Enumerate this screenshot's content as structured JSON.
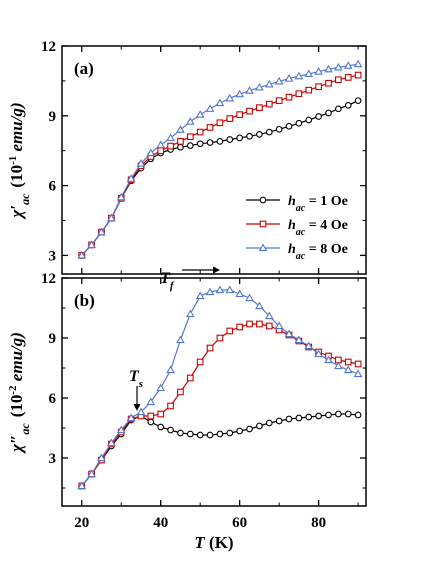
{
  "chart_data": [
    {
      "type": "line",
      "panel_label": "(a)",
      "ylabel_main": "χ′",
      "ylabel_sub": "ac",
      "ylabel_rest": "(10",
      "ylabel_exp": "-1",
      "ylabel_unit": " emu/g)",
      "xlim": [
        15,
        92
      ],
      "ylim": [
        2.2,
        12
      ],
      "yticks": [
        3,
        6,
        9,
        12
      ],
      "x": [
        20,
        22.5,
        25,
        27.5,
        30,
        32.5,
        35,
        37.5,
        40,
        42.5,
        45,
        47.5,
        50,
        52.5,
        55,
        57.5,
        60,
        62.5,
        65,
        67.5,
        70,
        72.5,
        75,
        77.5,
        80,
        82.5,
        85,
        87.5,
        90
      ],
      "series": [
        {
          "name_main": "h",
          "name_sub": "ac",
          "name_rest": " = 1 Oe",
          "marker": "circle",
          "color": "#000000",
          "values": [
            3.0,
            3.45,
            4.0,
            4.6,
            5.45,
            6.2,
            6.75,
            7.15,
            7.4,
            7.55,
            7.65,
            7.72,
            7.8,
            7.85,
            7.9,
            7.98,
            8.05,
            8.12,
            8.2,
            8.3,
            8.42,
            8.55,
            8.68,
            8.82,
            8.97,
            9.12,
            9.3,
            9.45,
            9.65
          ]
        },
        {
          "name_main": "h",
          "name_sub": "ac",
          "name_rest": " = 4 Oe",
          "marker": "square",
          "color": "#cc0000",
          "values": [
            3.0,
            3.45,
            4.0,
            4.6,
            5.45,
            6.25,
            6.85,
            7.25,
            7.5,
            7.7,
            7.9,
            8.1,
            8.3,
            8.5,
            8.7,
            8.88,
            9.05,
            9.2,
            9.35,
            9.5,
            9.65,
            9.8,
            9.95,
            10.1,
            10.25,
            10.4,
            10.55,
            10.65,
            10.75
          ]
        },
        {
          "name_main": "h",
          "name_sub": "ac",
          "name_rest": " = 8 Oe",
          "marker": "triangle",
          "color": "#5577cc",
          "values": [
            3.0,
            3.45,
            4.0,
            4.6,
            5.5,
            6.3,
            6.95,
            7.4,
            7.75,
            8.05,
            8.4,
            8.75,
            9.05,
            9.3,
            9.55,
            9.75,
            9.93,
            10.08,
            10.22,
            10.35,
            10.48,
            10.6,
            10.7,
            10.8,
            10.9,
            11.0,
            11.08,
            11.15,
            11.22
          ]
        }
      ]
    },
    {
      "type": "line",
      "panel_label": "(b)",
      "ylabel_main": "χ″",
      "ylabel_sub": "ac",
      "ylabel_rest": "(10",
      "ylabel_exp": "-2",
      "ylabel_unit": " emu/g)",
      "xlabel_main": "T",
      "xlabel_rest": " (K)",
      "xlim": [
        15,
        92
      ],
      "ylim": [
        0.6,
        12
      ],
      "yticks": [
        3,
        6,
        9,
        12
      ],
      "xticks": [
        20,
        40,
        60,
        80
      ],
      "x": [
        20,
        22.5,
        25,
        27.5,
        30,
        32.5,
        35,
        37.5,
        40,
        42.5,
        45,
        47.5,
        50,
        52.5,
        55,
        57.5,
        60,
        62.5,
        65,
        67.5,
        70,
        72.5,
        75,
        77.5,
        80,
        82.5,
        85,
        87.5,
        90
      ],
      "series": [
        {
          "marker": "circle",
          "color": "#000000",
          "values": [
            1.6,
            2.2,
            2.9,
            3.6,
            4.2,
            4.9,
            5.1,
            4.8,
            4.55,
            4.4,
            4.25,
            4.2,
            4.15,
            4.15,
            4.2,
            4.25,
            4.35,
            4.45,
            4.6,
            4.75,
            4.85,
            4.95,
            5.0,
            5.05,
            5.1,
            5.15,
            5.2,
            5.2,
            5.15
          ]
        },
        {
          "marker": "square",
          "color": "#cc0000",
          "values": [
            1.6,
            2.2,
            2.9,
            3.7,
            4.3,
            4.95,
            5.1,
            5.1,
            5.2,
            5.6,
            6.3,
            7.0,
            7.8,
            8.5,
            9.0,
            9.35,
            9.55,
            9.7,
            9.7,
            9.6,
            9.4,
            9.15,
            8.85,
            8.55,
            8.3,
            8.1,
            7.9,
            7.8,
            7.7
          ]
        },
        {
          "marker": "triangle",
          "color": "#5577cc",
          "values": [
            1.6,
            2.2,
            3.0,
            3.75,
            4.4,
            5.0,
            5.3,
            5.8,
            6.5,
            7.4,
            8.9,
            10.2,
            11.1,
            11.3,
            11.4,
            11.4,
            11.2,
            11.0,
            10.6,
            10.1,
            9.6,
            9.2,
            8.9,
            8.6,
            8.2,
            7.9,
            7.6,
            7.4,
            7.2
          ]
        }
      ],
      "annotations": [
        {
          "text_main": "T",
          "text_sub": "s",
          "at_x": 34,
          "at_y": 5.1
        },
        {
          "text_main": "T",
          "text_sub": "f",
          "at_x": 52,
          "at_y": 11.4
        }
      ]
    }
  ]
}
